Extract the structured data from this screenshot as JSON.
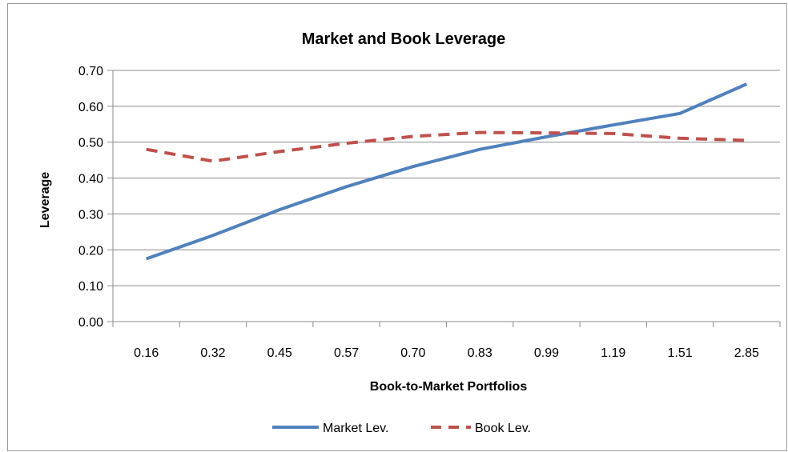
{
  "chart_data": {
    "type": "line",
    "title": "Market and Book Leverage",
    "xlabel": "Book-to-Market Portfolios",
    "ylabel": "Leverage",
    "categories": [
      "0.16",
      "0.32",
      "0.45",
      "0.57",
      "0.70",
      "0.83",
      "0.99",
      "1.19",
      "1.51",
      "2.85"
    ],
    "yticks": [
      "0.00",
      "0.10",
      "0.20",
      "0.30",
      "0.40",
      "0.50",
      "0.60",
      "0.70"
    ],
    "ylim": [
      0,
      0.7
    ],
    "grid": true,
    "legend_position": "bottom",
    "series": [
      {
        "name": "Market Lev.",
        "color": "#4F81BD",
        "style": "solid",
        "values": [
          0.175,
          0.24,
          0.312,
          0.376,
          0.432,
          0.48,
          0.515,
          0.548,
          0.58,
          0.662
        ]
      },
      {
        "name": "Book Lev.",
        "color": "#C0504D",
        "style": "dashed",
        "values": [
          0.48,
          0.447,
          0.474,
          0.497,
          0.516,
          0.527,
          0.526,
          0.524,
          0.511,
          0.505
        ]
      }
    ]
  }
}
